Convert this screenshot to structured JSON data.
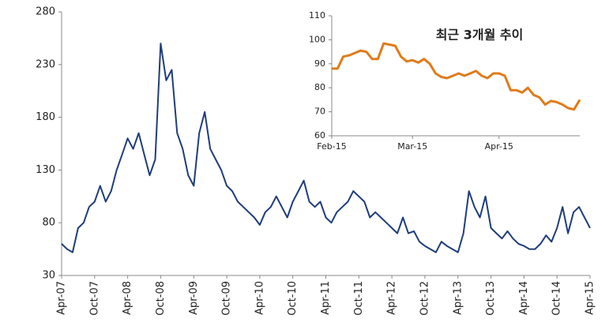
{
  "chart_data": [
    {
      "type": "line",
      "categories": [
        "Apr-07",
        null,
        null,
        null,
        null,
        null,
        "Oct-07",
        null,
        null,
        null,
        null,
        null,
        "Apr-08",
        null,
        null,
        null,
        null,
        null,
        "Oct-08",
        null,
        null,
        null,
        null,
        null,
        "Apr-09",
        null,
        null,
        null,
        null,
        null,
        "Oct-09",
        null,
        null,
        null,
        null,
        null,
        "Apr-10",
        null,
        null,
        null,
        null,
        null,
        "Oct-10",
        null,
        null,
        null,
        null,
        null,
        "Apr-11",
        null,
        null,
        null,
        null,
        null,
        "Oct-11",
        null,
        null,
        null,
        null,
        null,
        "Apr-12",
        null,
        null,
        null,
        null,
        null,
        "Oct-12",
        null,
        null,
        null,
        null,
        null,
        "Apr-13",
        null,
        null,
        null,
        null,
        null,
        "Oct-13",
        null,
        null,
        null,
        null,
        null,
        "Apr-14",
        null,
        null,
        null,
        null,
        null,
        "Oct-14",
        null,
        null,
        null,
        null,
        null,
        "Apr-15"
      ],
      "series": [
        {
          "color": "#1f3d7a",
          "values": [
            60,
            55,
            52,
            75,
            80,
            95,
            100,
            115,
            100,
            110,
            130,
            145,
            160,
            150,
            165,
            145,
            125,
            140,
            250,
            215,
            225,
            165,
            150,
            125,
            115,
            165,
            185,
            150,
            140,
            130,
            115,
            110,
            100,
            95,
            90,
            85,
            78,
            90,
            95,
            105,
            95,
            85,
            100,
            110,
            120,
            100,
            95,
            100,
            85,
            80,
            90,
            95,
            100,
            110,
            105,
            100,
            85,
            90,
            85,
            80,
            75,
            70,
            85,
            70,
            72,
            62,
            58,
            55,
            52,
            62,
            58,
            55,
            52,
            70,
            110,
            95,
            85,
            105,
            75,
            70,
            65,
            72,
            65,
            60,
            58,
            55,
            55,
            60,
            68,
            62,
            75,
            95,
            70,
            90,
            95,
            85,
            75
          ]
        }
      ],
      "ylim": [
        30,
        280
      ],
      "yticks": [
        30,
        80,
        130,
        180,
        230,
        280
      ],
      "grid": false
    },
    {
      "type": "line",
      "annotation": "최근 3개월 추이",
      "categories": [
        "Feb-15",
        null,
        null,
        null,
        null,
        null,
        null,
        null,
        null,
        null,
        null,
        null,
        null,
        null,
        "Mar-15",
        null,
        null,
        null,
        null,
        null,
        null,
        null,
        null,
        null,
        null,
        null,
        null,
        null,
        null,
        "Apr-15",
        null,
        null,
        null,
        null,
        null,
        null,
        null,
        null,
        null,
        null,
        null,
        null,
        null,
        null
      ],
      "series": [
        {
          "color": "#e07b1a",
          "values": [
            88,
            88,
            93,
            93.5,
            94.5,
            95.5,
            95,
            92,
            92,
            98.5,
            98,
            97.5,
            93,
            91,
            91.5,
            90.5,
            92,
            90,
            86,
            84.5,
            84,
            85,
            86,
            85,
            86,
            87,
            85,
            84,
            86,
            86,
            85,
            79,
            79,
            78,
            80,
            77,
            76,
            73,
            74.5,
            74,
            73,
            71.5,
            71,
            75
          ]
        }
      ],
      "ylim": [
        60,
        110
      ],
      "yticks": [
        60,
        70,
        80,
        90,
        100,
        110
      ],
      "grid": false
    }
  ]
}
